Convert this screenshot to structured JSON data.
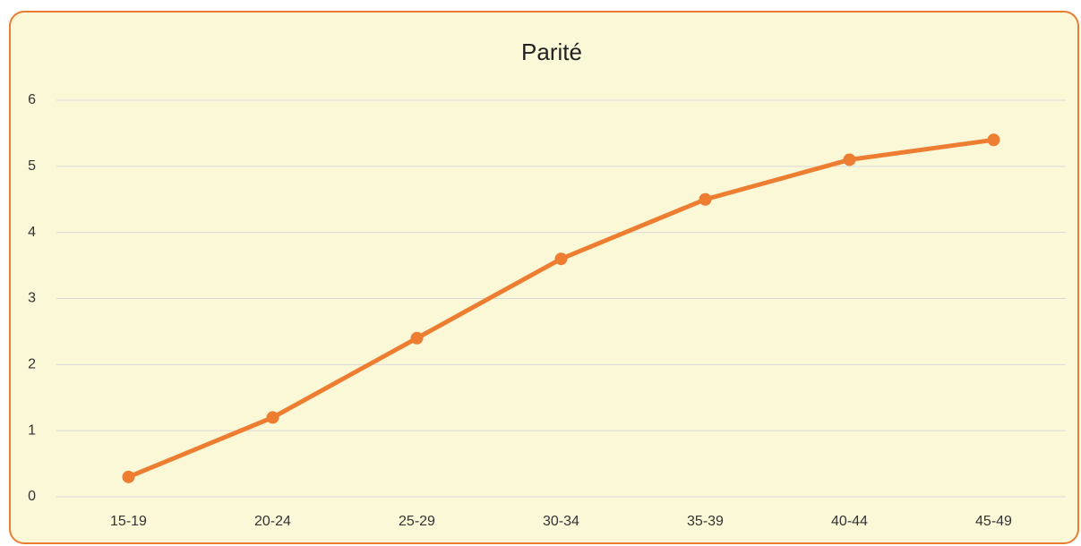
{
  "chart_data": {
    "type": "line",
    "title": "Parité",
    "categories": [
      "15-19",
      "20-24",
      "25-29",
      "30-34",
      "35-39",
      "40-44",
      "45-49"
    ],
    "series": [
      {
        "name": "Parité",
        "color": "#ed7d31",
        "values": [
          0.3,
          1.2,
          2.4,
          3.6,
          4.5,
          5.1,
          5.4
        ]
      }
    ],
    "ylim": [
      0,
      6
    ],
    "yticks": [
      0,
      1,
      2,
      3,
      4,
      5,
      6
    ],
    "grid": true,
    "legend": false
  }
}
